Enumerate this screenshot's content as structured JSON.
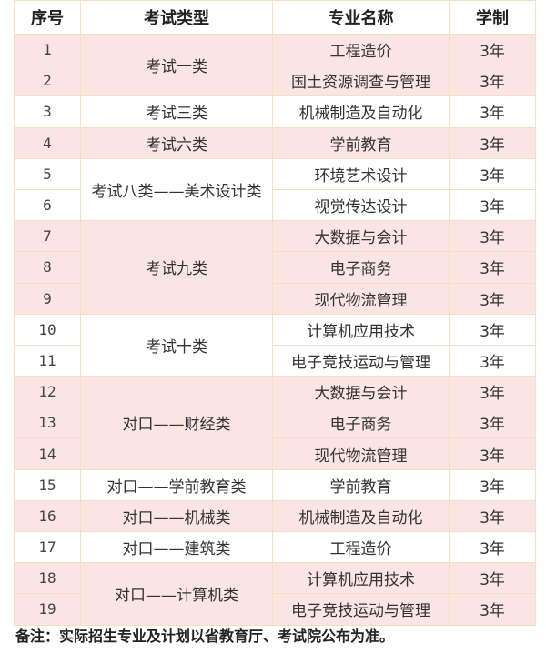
{
  "table": {
    "headers": [
      "序号",
      "考试类型",
      "专业名称",
      "学制"
    ],
    "groups": [
      {
        "type": "考试一类",
        "shaded": true,
        "rows": [
          {
            "no": "1",
            "major": "工程造价",
            "years": "3年"
          },
          {
            "no": "2",
            "major": "国土资源调查与管理",
            "years": "3年"
          }
        ]
      },
      {
        "type": "考试三类",
        "shaded": false,
        "rows": [
          {
            "no": "3",
            "major": "机械制造及自动化",
            "years": "3年"
          }
        ]
      },
      {
        "type": "考试六类",
        "shaded": true,
        "rows": [
          {
            "no": "4",
            "major": "学前教育",
            "years": "3年"
          }
        ]
      },
      {
        "type": "考试八类——美术设计类",
        "shaded": false,
        "rows": [
          {
            "no": "5",
            "major": "环境艺术设计",
            "years": "3年"
          },
          {
            "no": "6",
            "major": "视觉传达设计",
            "years": "3年"
          }
        ]
      },
      {
        "type": "考试九类",
        "shaded": true,
        "rows": [
          {
            "no": "7",
            "major": "大数据与会计",
            "years": "3年"
          },
          {
            "no": "8",
            "major": "电子商务",
            "years": "3年"
          },
          {
            "no": "9",
            "major": "现代物流管理",
            "years": "3年"
          }
        ]
      },
      {
        "type": "考试十类",
        "shaded": false,
        "rows": [
          {
            "no": "10",
            "major": "计算机应用技术",
            "years": "3年"
          },
          {
            "no": "11",
            "major": "电子竞技运动与管理",
            "years": "3年"
          }
        ]
      },
      {
        "type": "对口——财经类",
        "shaded": true,
        "rows": [
          {
            "no": "12",
            "major": "大数据与会计",
            "years": "3年"
          },
          {
            "no": "13",
            "major": "电子商务",
            "years": "3年"
          },
          {
            "no": "14",
            "major": "现代物流管理",
            "years": "3年"
          }
        ]
      },
      {
        "type": "对口——学前教育类",
        "shaded": false,
        "rows": [
          {
            "no": "15",
            "major": "学前教育",
            "years": "3年"
          }
        ]
      },
      {
        "type": "对口——机械类",
        "shaded": true,
        "rows": [
          {
            "no": "16",
            "major": "机械制造及自动化",
            "years": "3年"
          }
        ]
      },
      {
        "type": "对口——建筑类",
        "shaded": false,
        "rows": [
          {
            "no": "17",
            "major": "工程造价",
            "years": "3年"
          }
        ]
      },
      {
        "type": "对口——计算机类",
        "shaded": true,
        "rows": [
          {
            "no": "18",
            "major": "计算机应用技术",
            "years": "3年"
          },
          {
            "no": "19",
            "major": "电子竞技运动与管理",
            "years": "3年"
          }
        ]
      }
    ]
  },
  "note": "备注：实际招生专业及计划以省教育厅、考试院公布为准。",
  "colors": {
    "shaded_row": "#fbe4e4",
    "border": "#f7dcc6"
  }
}
